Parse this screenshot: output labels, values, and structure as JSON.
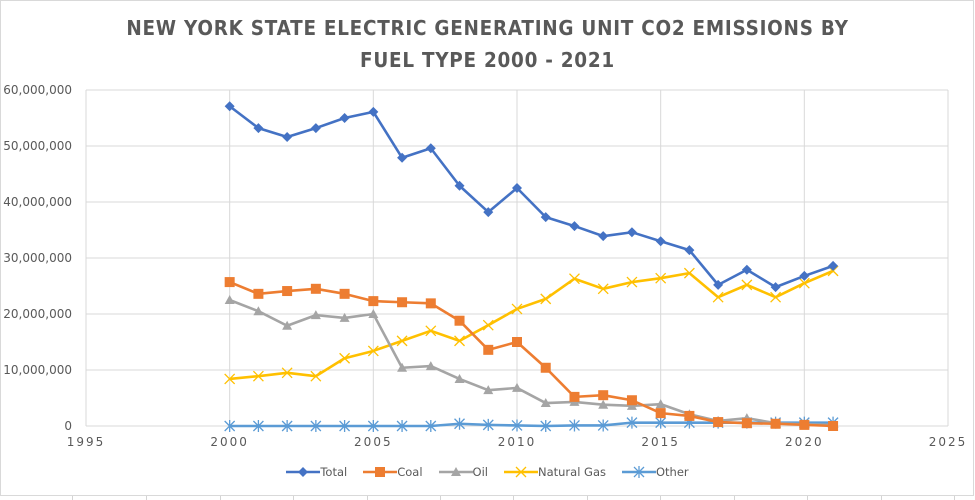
{
  "chart_data": {
    "type": "line",
    "title": "NEW YORK STATE ELECTRIC GENERATING UNIT CO2 EMISSIONS BY FUEL TYPE 2000 - 2021",
    "title_lines": [
      "NEW YORK STATE ELECTRIC GENERATING UNIT CO2 EMISSIONS BY",
      "FUEL TYPE 2000 - 2021"
    ],
    "xlabel": "",
    "ylabel": "",
    "xlim": [
      1995,
      2025
    ],
    "ylim": [
      0,
      60000000
    ],
    "x_ticks": [
      1995,
      2000,
      2005,
      2010,
      2015,
      2020,
      2025
    ],
    "x_tick_labels": [
      "1995",
      "2000",
      "2005",
      "2010",
      "2015",
      "2020",
      "2025"
    ],
    "y_ticks": [
      0,
      10000000,
      20000000,
      30000000,
      40000000,
      50000000,
      60000000
    ],
    "y_tick_labels": [
      "0",
      "10,000,000",
      "20,000,000",
      "30,000,000",
      "40,000,000",
      "50,000,000",
      "60,000,000"
    ],
    "grid": "both",
    "legend_position": "bottom",
    "x": [
      2000,
      2001,
      2002,
      2003,
      2004,
      2005,
      2006,
      2007,
      2008,
      2009,
      2010,
      2011,
      2012,
      2013,
      2014,
      2015,
      2016,
      2017,
      2018,
      2019,
      2020,
      2021
    ],
    "series": [
      {
        "name": "Total",
        "color": "#4472c4",
        "marker": "diamond",
        "values": [
          57100000,
          53200000,
          51600000,
          53200000,
          55000000,
          56100000,
          47900000,
          49600000,
          42900000,
          38200000,
          42500000,
          37300000,
          35700000,
          33900000,
          34600000,
          33000000,
          31400000,
          25200000,
          27900000,
          24800000,
          26800000,
          28600000
        ]
      },
      {
        "name": "Coal",
        "color": "#ed7d31",
        "marker": "square",
        "values": [
          25700000,
          23600000,
          24100000,
          24500000,
          23600000,
          22300000,
          22100000,
          21900000,
          18800000,
          13600000,
          15000000,
          10400000,
          5200000,
          5500000,
          4600000,
          2300000,
          1800000,
          700000,
          500000,
          400000,
          200000,
          0
        ]
      },
      {
        "name": "Oil",
        "color": "#a5a5a5",
        "marker": "triangle",
        "values": [
          22500000,
          20500000,
          17900000,
          19800000,
          19300000,
          20000000,
          10400000,
          10700000,
          8400000,
          6400000,
          6800000,
          4100000,
          4300000,
          3800000,
          3600000,
          3900000,
          2100000,
          900000,
          1400000,
          500000,
          300000,
          200000
        ]
      },
      {
        "name": "Natural Gas",
        "color": "#ffc000",
        "marker": "x",
        "values": [
          8400000,
          8900000,
          9500000,
          8900000,
          12100000,
          13400000,
          15200000,
          17000000,
          15200000,
          18000000,
          20900000,
          22700000,
          26300000,
          24500000,
          25700000,
          26400000,
          27300000,
          23000000,
          25200000,
          23000000,
          25500000,
          27700000
        ]
      },
      {
        "name": "Other",
        "color": "#5b9bd5",
        "marker": "star",
        "values": [
          0,
          0,
          0,
          0,
          0,
          0,
          0,
          0,
          400000,
          200000,
          100000,
          0,
          100000,
          100000,
          600000,
          600000,
          600000,
          600000,
          600000,
          600000,
          600000,
          600000
        ]
      }
    ]
  }
}
